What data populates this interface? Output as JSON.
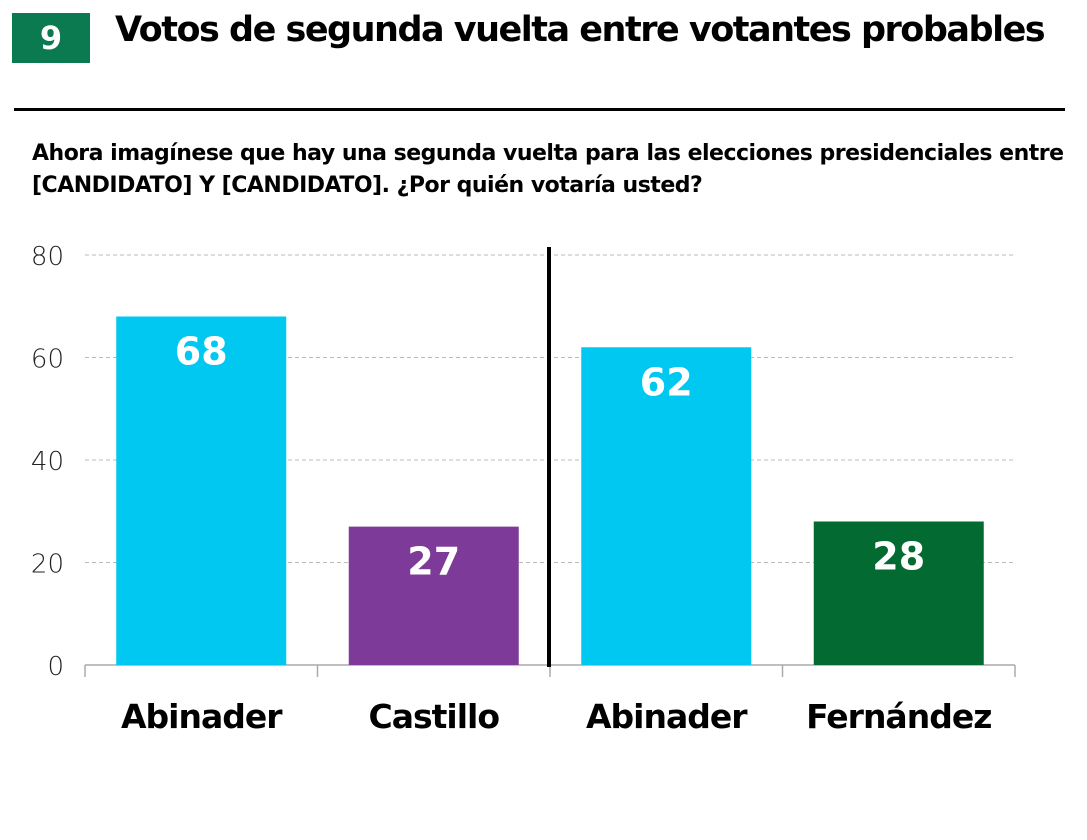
{
  "badge": "9",
  "title": "Votos de segunda vuelta entre votantes probables",
  "question": "Ahora imagínese que hay una segunda vuelta para las elecciones presidenciales entre [CANDIDATO] Y [CANDIDATO]. ¿Por quién votaría usted?",
  "chart_data": {
    "type": "bar",
    "categories": [
      "Abinader",
      "Castillo",
      "Abinader",
      "Fernández"
    ],
    "values": [
      68,
      27,
      62,
      28
    ],
    "colors": [
      "#00c8f0",
      "#7e3a98",
      "#00c8f0",
      "#036b31"
    ],
    "groups": [
      [
        "Abinader",
        "Castillo"
      ],
      [
        "Abinader",
        "Fernández"
      ]
    ],
    "ylim": [
      0,
      80
    ],
    "yticks": [
      0,
      20,
      40,
      60,
      80
    ],
    "grid": true,
    "xlabel": "",
    "ylabel": ""
  }
}
